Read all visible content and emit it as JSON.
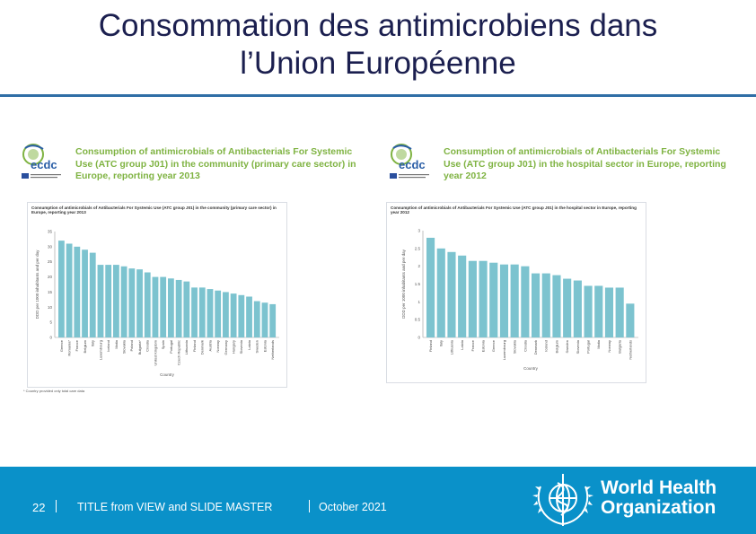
{
  "slide": {
    "title_line1": "Consommation des antimicrobiens dans",
    "title_line2": "l’Union Européenne"
  },
  "footer": {
    "page_number": "22",
    "title": "TITLE from VIEW and SLIDE MASTER",
    "date": "October 2021",
    "org_line1": "World Health",
    "org_line2": "Organization"
  },
  "colors": {
    "title": "#1b1f4f",
    "rule": "#2f6ea6",
    "footer_bg": "#0a91c9",
    "bar": "#7cc3cf",
    "panel_title": "#7fb342"
  },
  "icons": {
    "ecdc_logo": "ecdc-logo",
    "who_emblem": "who-emblem-icon"
  },
  "ecdc_label": "ecdc",
  "panels": [
    {
      "heading": "Consumption of antimicrobials of Antibacterials For Systemic Use (ATC group J01) in the community (primary care sector) in Europe, reporting year 2013",
      "subtitle": "Consumption of antimicrobials of Antibacterials For Systemic Use (ATC group J01) in the community (primary care sector) in Europe, reporting year 2013",
      "footnote": "* Country provided only total care data"
    },
    {
      "heading": "Consumption of antimicrobials of Antibacterials For Systemic Use (ATC group J01) in the hospital sector in Europe, reporting year 2012",
      "subtitle": "Consumption of antimicrobials of Antibacterials For Systemic Use (ATC group J01) in the hospital sector in Europe, reporting year 2012"
    }
  ],
  "chart_data": [
    {
      "type": "bar",
      "title": "Consumption of antimicrobials of Antibacterials For Systemic Use (ATC group J01) in the community (primary care sector) in Europe, reporting year 2013",
      "xlabel": "Country",
      "ylabel": "DDD per 1000 inhabitants and per day",
      "ylim": [
        0,
        35
      ],
      "yticks": [
        0,
        5,
        10,
        15,
        20,
        25,
        30,
        35
      ],
      "grid": false,
      "categories": [
        "Greece",
        "Romania*",
        "France",
        "Belgium",
        "Italy",
        "Luxembourg",
        "Iceland",
        "Malta",
        "Slovakia",
        "Poland",
        "Bulgaria*",
        "Croatia",
        "United Kingdom",
        "Spain",
        "Portugal",
        "Czech Republic",
        "Lithuania",
        "Finland",
        "Denmark",
        "Austria",
        "Norway",
        "Germany",
        "Hungary",
        "Slovenia",
        "Latvia",
        "Sweden",
        "Estonia",
        "Netherlands"
      ],
      "series": [
        {
          "values": [
            32.0,
            31.0,
            30.0,
            29.0,
            28.0,
            24.0,
            24.0,
            24.0,
            23.5,
            22.8,
            22.5,
            21.5,
            20.0,
            20.0,
            19.5,
            19.0,
            18.5,
            16.5,
            16.5,
            16.0,
            15.5,
            15.0,
            14.5,
            14.0,
            13.5,
            12.0,
            11.5,
            11.0
          ]
        }
      ]
    },
    {
      "type": "bar",
      "title": "Consumption of antimicrobials of Antibacterials For Systemic Use (ATC group J01) in the hospital sector in Europe, reporting year 2012",
      "xlabel": "Country",
      "ylabel": "DDD per 1000 inhabitants and per day",
      "ylim": [
        0,
        3
      ],
      "yticks": [
        0,
        0.5,
        1,
        1.5,
        2,
        2.5,
        3
      ],
      "grid": false,
      "categories": [
        "Finland",
        "Italy",
        "Lithuania",
        "Latvia",
        "France",
        "Estonia",
        "Greece",
        "Luxembourg",
        "Slovakia",
        "Croatia",
        "Denmark",
        "Iceland",
        "Belgium",
        "Sweden",
        "Slovenia",
        "Portugal",
        "Malta",
        "Norway",
        "Bulgaria",
        "Netherlands"
      ],
      "series": [
        {
          "values": [
            2.8,
            2.5,
            2.4,
            2.3,
            2.15,
            2.15,
            2.1,
            2.05,
            2.05,
            2.0,
            1.8,
            1.8,
            1.75,
            1.65,
            1.6,
            1.45,
            1.45,
            1.4,
            1.4,
            0.95
          ]
        }
      ]
    }
  ]
}
